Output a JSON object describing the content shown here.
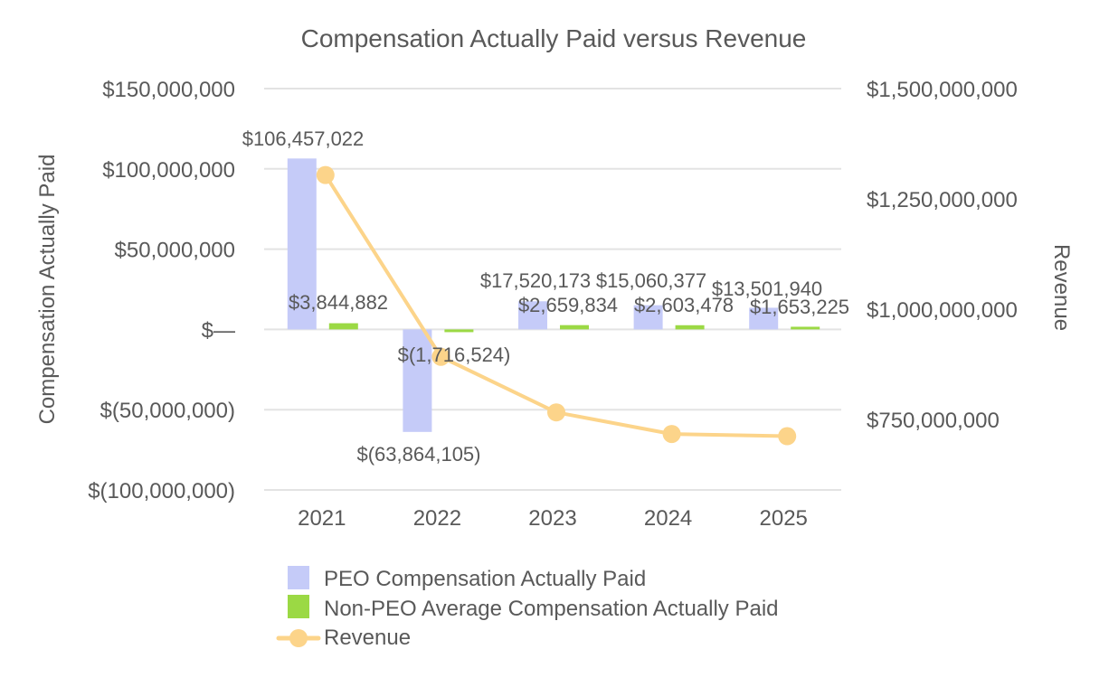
{
  "chart_data": {
    "type": "bar",
    "title": "Compensation Actually Paid versus Revenue",
    "categories": [
      "2021",
      "2022",
      "2023",
      "2024",
      "2025"
    ],
    "y_left": {
      "label": "Compensation Actually Paid",
      "range": [
        -100000000,
        150000000
      ],
      "ticks": [
        150000000,
        100000000,
        50000000,
        0,
        -50000000,
        -100000000
      ],
      "tick_labels": [
        "$150,000,000",
        "$100,000,000",
        "$50,000,000",
        "$—",
        "$(50,000,000)",
        "$(100,000,000)"
      ]
    },
    "y_right": {
      "label": "Revenue",
      "ticks": [
        1500000000,
        1250000000,
        1000000000,
        750000000
      ],
      "tick_labels": [
        "$1,500,000,000",
        "$1,250,000,000",
        "$1,000,000,000",
        "$750,000,000"
      ]
    },
    "grid": true,
    "legend_position": "bottom",
    "series": [
      {
        "name": "PEO Compensation Actually Paid",
        "kind": "bar",
        "axis": "left",
        "color": "#c5cbf8",
        "values": [
          106457022,
          -63864105,
          17520173,
          15060377,
          13501940
        ],
        "labels": [
          "$106,457,022",
          "$(63,864,105)",
          "$17,520,173",
          "$15,060,377",
          "$13,501,940"
        ]
      },
      {
        "name": "Non-PEO Average Compensation Actually Paid",
        "kind": "bar",
        "axis": "left",
        "color": "#9bd944",
        "values": [
          3844882,
          -1716524,
          2659834,
          2603478,
          1653225
        ],
        "labels": [
          "$3,844,882",
          "$(1,716,524)",
          "$2,659,834",
          "$2,603,478",
          "$1,653,225"
        ]
      },
      {
        "name": "Revenue",
        "kind": "line",
        "axis": "right",
        "color": "#fcd48a",
        "values": [
          1304000000,
          892000000,
          766000000,
          717000000,
          712000000
        ]
      }
    ]
  }
}
